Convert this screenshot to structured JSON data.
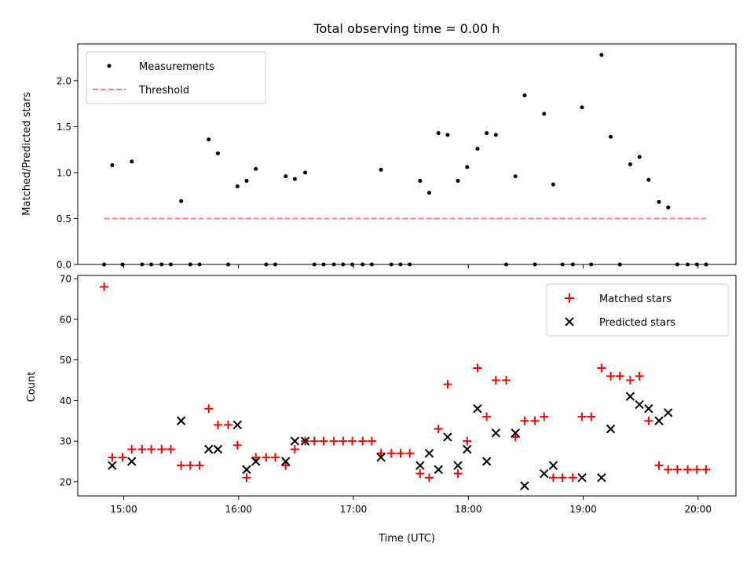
{
  "chart_data": [
    {
      "type": "scatter",
      "title": "Total observing time = 0.00 h",
      "xlabel": "",
      "ylabel": "Matched/Predicted stars",
      "xlim": [
        14.6,
        20.33
      ],
      "ylim": [
        0,
        2.4
      ],
      "yticks": [
        0.0,
        0.5,
        1.0,
        1.5,
        2.0
      ],
      "ytick_labels": [
        "0.0",
        "0.5",
        "1.0",
        "1.5",
        "2.0"
      ],
      "grid": false,
      "legend_position": "top-left",
      "series": [
        {
          "name": "Measurements",
          "kind": "points",
          "color": "#000000",
          "x": [
            14.83,
            14.9,
            14.99,
            15.07,
            15.16,
            15.24,
            15.33,
            15.41,
            15.5,
            15.58,
            15.66,
            15.74,
            15.82,
            15.91,
            15.99,
            16.07,
            16.15,
            16.24,
            16.32,
            16.41,
            16.49,
            16.58,
            16.66,
            16.74,
            16.83,
            16.91,
            16.99,
            17.08,
            17.16,
            17.24,
            17.33,
            17.41,
            17.49,
            17.58,
            17.66,
            17.74,
            17.82,
            17.91,
            17.99,
            18.08,
            18.16,
            18.24,
            18.33,
            18.41,
            18.49,
            18.58,
            18.66,
            18.74,
            18.82,
            18.91,
            18.99,
            19.07,
            19.16,
            19.24,
            19.32,
            19.41,
            19.49,
            19.57,
            19.66,
            19.74,
            19.82,
            19.91,
            19.99,
            20.07
          ],
          "y": [
            0.0,
            1.08,
            0.0,
            1.12,
            0.0,
            0.0,
            0.0,
            0.0,
            0.69,
            0.0,
            0.0,
            1.36,
            1.21,
            0.0,
            0.85,
            0.91,
            1.04,
            0.0,
            0.0,
            0.96,
            0.93,
            1.0,
            0.0,
            0.0,
            0.0,
            0.0,
            0.0,
            0.0,
            0.0,
            1.03,
            0.0,
            0.0,
            0.0,
            0.91,
            0.78,
            1.43,
            1.41,
            0.91,
            1.06,
            1.26,
            1.43,
            1.41,
            0.0,
            0.96,
            1.84,
            0.0,
            1.64,
            0.87,
            0.0,
            0.0,
            1.71,
            0.0,
            2.28,
            1.39,
            0.0,
            1.09,
            1.17,
            0.92,
            0.68,
            0.62,
            0.0,
            0.0,
            0.0,
            0.0
          ]
        },
        {
          "name": "Threshold",
          "kind": "dashed-line",
          "color": "#ff7f7f",
          "x": [
            14.83,
            20.07
          ],
          "y": [
            0.5,
            0.5
          ]
        }
      ]
    },
    {
      "type": "scatter",
      "title": "",
      "xlabel": "Time (UTC)",
      "ylabel": "Count",
      "xlim": [
        14.6,
        20.33
      ],
      "ylim": [
        16.5,
        70.8
      ],
      "xticks": [
        15,
        16,
        17,
        18,
        19,
        20
      ],
      "xtick_labels": [
        "15:00",
        "16:00",
        "17:00",
        "18:00",
        "19:00",
        "20:00"
      ],
      "yticks": [
        20,
        30,
        40,
        50,
        60,
        70
      ],
      "ytick_labels": [
        "20",
        "30",
        "40",
        "50",
        "60",
        "70"
      ],
      "grid": false,
      "legend_position": "top-right",
      "series": [
        {
          "name": "Matched stars",
          "marker": "plus",
          "color": "#ff0000",
          "x": [
            14.83,
            14.9,
            14.99,
            15.07,
            15.16,
            15.24,
            15.33,
            15.41,
            15.5,
            15.58,
            15.66,
            15.74,
            15.82,
            15.91,
            15.99,
            16.07,
            16.15,
            16.24,
            16.32,
            16.41,
            16.49,
            16.58,
            16.66,
            16.74,
            16.83,
            16.91,
            16.99,
            17.08,
            17.16,
            17.24,
            17.33,
            17.41,
            17.49,
            17.58,
            17.66,
            17.74,
            17.82,
            17.91,
            17.99,
            18.08,
            18.16,
            18.24,
            18.33,
            18.41,
            18.49,
            18.58,
            18.66,
            18.74,
            18.82,
            18.91,
            18.99,
            19.07,
            19.16,
            19.24,
            19.32,
            19.41,
            19.49,
            19.57,
            19.66,
            19.74,
            19.82,
            19.91,
            19.99,
            20.07
          ],
          "y": [
            68,
            26,
            26,
            28,
            28,
            28,
            28,
            28,
            24,
            24,
            24,
            38,
            34,
            34,
            29,
            21,
            26,
            26,
            26,
            24,
            28,
            30,
            30,
            30,
            30,
            30,
            30,
            30,
            30,
            27,
            27,
            27,
            27,
            22,
            21,
            33,
            44,
            22,
            30,
            48,
            36,
            45,
            45,
            31,
            35,
            35,
            36,
            21,
            21,
            21,
            36,
            36,
            48,
            46,
            46,
            45,
            46,
            35,
            24,
            23,
            23,
            23,
            23,
            23
          ]
        },
        {
          "name": "Predicted stars",
          "marker": "x",
          "color": "#000000",
          "x": [
            14.9,
            15.07,
            15.5,
            15.74,
            15.82,
            15.99,
            16.07,
            16.15,
            16.41,
            16.49,
            16.58,
            17.24,
            17.58,
            17.66,
            17.74,
            17.82,
            17.91,
            17.99,
            18.08,
            18.16,
            18.24,
            18.41,
            18.49,
            18.66,
            18.74,
            18.99,
            19.16,
            19.24,
            19.41,
            19.49,
            19.57,
            19.66,
            19.74
          ],
          "y": [
            24,
            25,
            35,
            28,
            28,
            34,
            23,
            25,
            25,
            30,
            30,
            26,
            24,
            27,
            23,
            31,
            24,
            28,
            38,
            25,
            32,
            32,
            19,
            22,
            24,
            21,
            21,
            33,
            41,
            39,
            38,
            35,
            37
          ]
        }
      ]
    }
  ]
}
